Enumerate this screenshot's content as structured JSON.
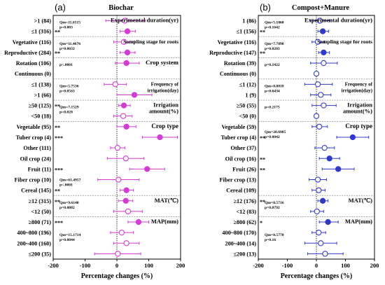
{
  "chart_data": [
    {
      "type": "forest",
      "panel_label": "(a)",
      "title": "Biochar",
      "xlabel": "Percentage changes (%)",
      "xlim": [
        -200,
        200
      ],
      "xticks": [
        "-200",
        "-100",
        "0",
        "100",
        "200"
      ],
      "color": "#d63ad4",
      "marker_fill": "hollow-small-mixed",
      "rows": [
        {
          "label": ">1 (84)",
          "mean": 25,
          "lo": -35,
          "hi": 90,
          "sig": "",
          "filled": false
        },
        {
          "label": "≤1 (316)",
          "mean": 33,
          "lo": 10,
          "hi": 58,
          "sig": "**",
          "filled": true
        },
        {
          "label": "Vegetative (116)",
          "mean": 22,
          "lo": -10,
          "hi": 55,
          "sig": "",
          "filled": false
        },
        {
          "label": "Reproductive (284)",
          "mean": 33,
          "lo": 10,
          "hi": 57,
          "sig": "**",
          "filled": true
        },
        {
          "label": "Rotation (106)",
          "mean": 30,
          "lo": -5,
          "hi": 70,
          "sig": "",
          "filled": true
        },
        {
          "label": "Continuous (0)",
          "mean": null,
          "lo": null,
          "hi": null,
          "sig": "",
          "filled": false
        },
        {
          "label": "≤1 (138)",
          "mean": -5,
          "lo": -40,
          "hi": 30,
          "sig": "",
          "filled": false
        },
        {
          "label": ">1 (66)",
          "mean": 55,
          "lo": 0,
          "hi": 110,
          "sig": "",
          "filled": true
        },
        {
          "label": "≥50 (125)",
          "mean": 22,
          "lo": 5,
          "hi": 42,
          "sig": "**",
          "filled": true
        },
        {
          "label": "<50 (18)",
          "mean": 20,
          "lo": -10,
          "hi": 48,
          "sig": "",
          "filled": false
        },
        {
          "label": "Vegetable (95)",
          "mean": 30,
          "lo": 0,
          "hi": 60,
          "sig": "**",
          "filled": true
        },
        {
          "label": "Tuber crop (4)",
          "mean": 135,
          "lo": 80,
          "hi": 190,
          "sig": "***",
          "filled": true
        },
        {
          "label": "Other (111)",
          "mean": 2,
          "lo": -20,
          "hi": 25,
          "sig": "",
          "filled": false
        },
        {
          "label": "Oil crop (24)",
          "mean": 28,
          "lo": -30,
          "hi": 85,
          "sig": "",
          "filled": false
        },
        {
          "label": "Fruit (11)",
          "mean": 95,
          "lo": 40,
          "hi": 150,
          "sig": "***",
          "filled": true
        },
        {
          "label": "Fiber crop (10)",
          "mean": 5,
          "lo": -60,
          "hi": 70,
          "sig": "",
          "filled": false
        },
        {
          "label": "Cereal (145)",
          "mean": 30,
          "lo": 10,
          "hi": 52,
          "sig": "**",
          "filled": true
        },
        {
          "label": "≥12 (315)",
          "mean": 28,
          "lo": 5,
          "hi": 50,
          "sig": "**",
          "filled": true
        },
        {
          "label": "<12 (50)",
          "mean": 35,
          "lo": -10,
          "hi": 80,
          "sig": "",
          "filled": false
        },
        {
          "label": "≥800 (71)",
          "mean": 68,
          "lo": 35,
          "hi": 100,
          "sig": "***",
          "filled": true
        },
        {
          "label": "400~800 (196)",
          "mean": 15,
          "lo": -20,
          "hi": 52,
          "sig": "",
          "filled": false
        },
        {
          "label": "200~400 (160)",
          "mean": 30,
          "lo": -10,
          "hi": 70,
          "sig": "",
          "filled": false
        },
        {
          "label": "≤200 (35)",
          "mean": 3,
          "lo": -70,
          "hi": 75,
          "sig": "",
          "filled": false
        }
      ],
      "groups": [
        {
          "title": "Experimental duration(yr)",
          "title2": "",
          "font": 8.5,
          "stat1": "Qm=11.6515",
          "stat2": "p=0.003"
        },
        {
          "title": "Sampling stage for roots",
          "title2": "",
          "font": 7.6,
          "stat1": "Qm=11.4676",
          "stat2": "p=0.0032"
        },
        {
          "title": "Crop system",
          "title2": "",
          "font": 8.8,
          "stat1": "",
          "stat2": "p<.0001"
        },
        {
          "title": "Frequency of",
          "title2": "irrigation(day)",
          "font": 7,
          "stat1": "Qm=5.7536",
          "stat2": "p=0.0563"
        },
        {
          "title": "Irrigation",
          "title2": "amount(%)",
          "font": 8.5,
          "stat1": "Qm=7.1529",
          "stat2": "p=0.028"
        },
        {
          "title": "Crop type",
          "title2": "",
          "font": 9,
          "stat1": "",
          "stat2": ""
        },
        {
          "title": "",
          "title2": "",
          "font": 8,
          "stat1": "Qm=61.4957",
          "stat2": "p<.0001"
        },
        {
          "title": "MAT(℃)",
          "title2": "",
          "font": 8.5,
          "stat1": "Qm=9.6148",
          "stat2": "p=0.0082"
        },
        {
          "title": "MAP(mm)",
          "title2": "",
          "font": 8.5,
          "stat1": "Qm=15.1714",
          "stat2": "p=0.0044"
        }
      ]
    },
    {
      "type": "forest",
      "panel_label": "(b)",
      "title": "Compost+Manure",
      "xlabel": "Percentage changes (%)",
      "xlim": [
        -200,
        200
      ],
      "xticks": [
        "-200",
        "-100",
        "0",
        "100",
        "200"
      ],
      "color": "#2f3acb",
      "rows": [
        {
          "label": "1 (86)",
          "mean": 12,
          "lo": -20,
          "hi": 45,
          "sig": "",
          "filled": false
        },
        {
          "label": "≤1 (156)",
          "mean": 22,
          "lo": 5,
          "hi": 42,
          "sig": "**",
          "filled": true
        },
        {
          "label": "Vegetative (116)",
          "mean": 5,
          "lo": -15,
          "hi": 28,
          "sig": "",
          "filled": false
        },
        {
          "label": "Reproductive (147)",
          "mean": 25,
          "lo": 8,
          "hi": 45,
          "sig": "**",
          "filled": true
        },
        {
          "label": "Rotation (39)",
          "mean": 25,
          "lo": -20,
          "hi": 72,
          "sig": "",
          "filled": false
        },
        {
          "label": "Continuous (0)",
          "mean": 0,
          "lo": 0,
          "hi": 0,
          "sig": "",
          "filled": false
        },
        {
          "label": "≤1 (12)",
          "mean": 5,
          "lo": -40,
          "hi": 55,
          "sig": "",
          "filled": false
        },
        {
          "label": "1 (9)",
          "mean": 15,
          "lo": -20,
          "hi": 50,
          "sig": "",
          "filled": false
        },
        {
          "label": "≥50 (55)",
          "mean": 25,
          "lo": -15,
          "hi": 68,
          "sig": "",
          "filled": false
        },
        {
          "label": "<50 (0)",
          "mean": 0,
          "lo": 0,
          "hi": 0,
          "sig": "",
          "filled": false
        },
        {
          "label": "Vegetable (59)",
          "mean": 10,
          "lo": -15,
          "hi": 38,
          "sig": "",
          "filled": false
        },
        {
          "label": "Tuber crop (4)",
          "mean": 125,
          "lo": 70,
          "hi": 180,
          "sig": "**",
          "filled": true
        },
        {
          "label": "Other (37)",
          "mean": 28,
          "lo": -5,
          "hi": 62,
          "sig": "",
          "filled": false
        },
        {
          "label": "Oil crop (16)",
          "mean": 45,
          "lo": 10,
          "hi": 80,
          "sig": "**",
          "filled": true
        },
        {
          "label": "Fruit (26)",
          "mean": 75,
          "lo": 20,
          "hi": 130,
          "sig": "**",
          "filled": true
        },
        {
          "label": "Fiber crop (13)",
          "mean": 5,
          "lo": -25,
          "hi": 35,
          "sig": "",
          "filled": false
        },
        {
          "label": "Cereal (109)",
          "mean": 8,
          "lo": -15,
          "hi": 30,
          "sig": "",
          "filled": false
        },
        {
          "label": "≥12 (176)",
          "mean": 22,
          "lo": 5,
          "hi": 40,
          "sig": "**",
          "filled": true
        },
        {
          "label": "<12 (83)",
          "mean": 2,
          "lo": -20,
          "hi": 25,
          "sig": "",
          "filled": false
        },
        {
          "label": "≥800 (62)",
          "mean": 40,
          "lo": 10,
          "hi": 75,
          "sig": "*",
          "filled": true
        },
        {
          "label": "400~800 (170)",
          "mean": 8,
          "lo": -15,
          "hi": 32,
          "sig": "",
          "filled": false
        },
        {
          "label": "200~400 (14)",
          "mean": 15,
          "lo": -40,
          "hi": 70,
          "sig": "",
          "filled": false
        },
        {
          "label": "≤200 (13)",
          "mean": 30,
          "lo": -30,
          "hi": 92,
          "sig": "",
          "filled": false
        }
      ],
      "groups": [
        {
          "title": "Experimental duration(yr)",
          "title2": "",
          "font": 8.5,
          "stat1": "Qm=5.1060",
          "stat2": "p=0.1642"
        },
        {
          "title": "Sampling stage for roots",
          "title2": "",
          "font": 7.6,
          "stat1": "Qm=7.7898",
          "stat2": "p=0.0203"
        },
        {
          "title": "",
          "title2": "",
          "font": 8,
          "stat1": "",
          "stat2": "p=0.1422"
        },
        {
          "title": "Frequency of",
          "title2": "irrigation(day)",
          "font": 7,
          "stat1": "Qm=0.8818",
          "stat2": "p=0.6434"
        },
        {
          "title": "Irrigation",
          "title2": "amount(%)",
          "font": 8.5,
          "stat1": "",
          "stat2": "p=0.2175"
        },
        {
          "title": "Crop type",
          "title2": "",
          "font": 9,
          "stat1": "Qm=20.6985",
          "stat2": "p=0.0042"
        },
        {
          "title": "",
          "title2": "",
          "font": 8,
          "stat1": "",
          "stat2": ""
        },
        {
          "title": "MAT(℃)",
          "title2": "",
          "font": 8.5,
          "stat1": "Qm=0.5716",
          "stat2": "p=0.0792"
        },
        {
          "title": "MAP(mm)",
          "title2": "",
          "font": 8.5,
          "stat1": "Qm=0.5770",
          "stat2": "p=0.16"
        }
      ]
    }
  ]
}
